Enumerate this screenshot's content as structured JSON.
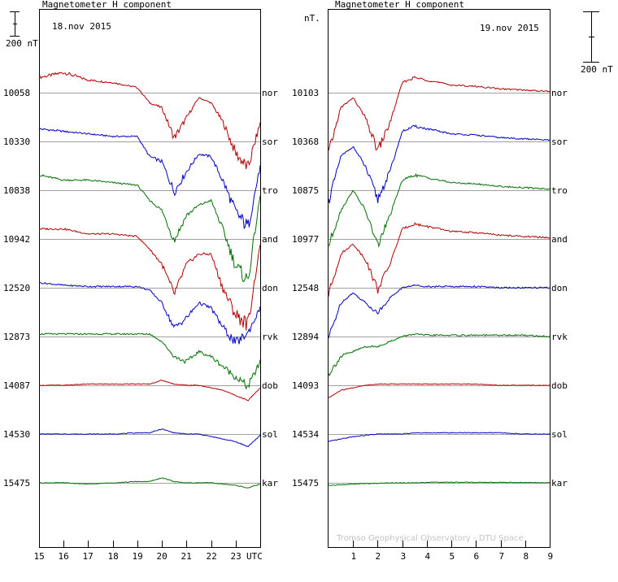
{
  "left_panel": {
    "title": "Magnetometer H component",
    "date": "18.nov 2015",
    "scale_label": "200 nT",
    "x_ticks": [
      "15",
      "16",
      "17",
      "18",
      "19",
      "20",
      "21",
      "22",
      "23"
    ],
    "x_unit": "UTC",
    "baselines": [
      "10058",
      "10330",
      "10838",
      "10942",
      "12520",
      "12873",
      "14087",
      "14530",
      "15475"
    ]
  },
  "right_panel": {
    "title": "Magnetometer H component",
    "date": "19.nov 2015",
    "unit_label": "nT.",
    "scale_label": "200 nT",
    "x_ticks": [
      "1",
      "2",
      "3",
      "4",
      "5",
      "6",
      "7",
      "8",
      "9"
    ],
    "baselines": [
      "10103",
      "10368",
      "10875",
      "10977",
      "12548",
      "12894",
      "14093",
      "14534",
      "15475"
    ],
    "credit": "Tromso Geophysical Observatory - DTU Space"
  },
  "stations": [
    "nor",
    "sor",
    "tro",
    "and",
    "don",
    "rvk",
    "dob",
    "sol",
    "kar"
  ],
  "colors": {
    "red": "#b00000",
    "blue": "#0000c0",
    "green": "#007000",
    "baseline": "#a0a0a0",
    "frame": "#000000"
  },
  "chart_data": [
    {
      "type": "line",
      "title": "Magnetometer H component",
      "subtitle": "18.nov 2015",
      "xlabel": "UTC",
      "x_range": [
        15,
        24
      ],
      "ylabel": "",
      "scale_bar_nT": 200,
      "series": [
        {
          "name": "nor",
          "baseline_nT": 10058,
          "color": "red",
          "x": [
            15,
            16,
            17,
            18,
            19,
            19.5,
            20,
            20.5,
            21,
            21.5,
            22,
            22.5,
            23,
            23.5,
            24
          ],
          "offset_nT": [
            60,
            80,
            50,
            40,
            20,
            -40,
            -60,
            -180,
            -100,
            -20,
            -40,
            -120,
            -240,
            -300,
            -120
          ]
        },
        {
          "name": "sor",
          "baseline_nT": 10330,
          "color": "blue",
          "x": [
            15,
            16,
            17,
            18,
            19,
            19.5,
            20,
            20.5,
            21,
            21.5,
            22,
            22.5,
            23,
            23.5,
            24
          ],
          "offset_nT": [
            50,
            40,
            30,
            20,
            20,
            -60,
            -80,
            -200,
            -120,
            -50,
            -60,
            -160,
            -280,
            -340,
            -100
          ]
        },
        {
          "name": "tro",
          "baseline_nT": 10838,
          "color": "green",
          "x": [
            15,
            16,
            17,
            18,
            19,
            19.5,
            20,
            20.5,
            21,
            21.5,
            22,
            22.5,
            23,
            23.5,
            24
          ],
          "offset_nT": [
            60,
            40,
            40,
            30,
            20,
            -40,
            -80,
            -200,
            -100,
            -60,
            -40,
            -160,
            -300,
            -360,
            -20
          ]
        },
        {
          "name": "and",
          "baseline_nT": 10942,
          "color": "red",
          "x": [
            15,
            16,
            17,
            18,
            19,
            19.5,
            20,
            20.5,
            21,
            21.5,
            22,
            22.5,
            23,
            23.5,
            24
          ],
          "offset_nT": [
            40,
            40,
            20,
            20,
            10,
            -40,
            -100,
            -220,
            -100,
            -60,
            -60,
            -200,
            -300,
            -340,
            -20
          ]
        },
        {
          "name": "don",
          "baseline_nT": 12520,
          "color": "blue",
          "x": [
            15,
            16,
            17,
            18,
            19,
            19.5,
            20,
            20.5,
            21,
            21.5,
            22,
            22.5,
            23,
            23.5,
            24
          ],
          "offset_nT": [
            20,
            10,
            5,
            5,
            5,
            -10,
            -60,
            -160,
            -120,
            -60,
            -80,
            -160,
            -220,
            -180,
            -80
          ]
        },
        {
          "name": "rvk",
          "baseline_nT": 12873,
          "color": "green",
          "x": [
            15,
            16,
            17,
            18,
            19,
            19.5,
            20,
            20.5,
            21,
            21.5,
            22,
            22.5,
            23,
            23.5,
            24
          ],
          "offset_nT": [
            10,
            10,
            10,
            10,
            10,
            10,
            -20,
            -80,
            -100,
            -60,
            -80,
            -120,
            -160,
            -200,
            -100
          ]
        },
        {
          "name": "dob",
          "baseline_nT": 14087,
          "color": "red",
          "x": [
            15,
            16,
            17,
            18,
            19,
            19.5,
            20,
            20.5,
            21,
            21.5,
            22,
            22.5,
            23,
            23.5,
            24
          ],
          "offset_nT": [
            0,
            0,
            5,
            5,
            5,
            5,
            20,
            5,
            0,
            0,
            -10,
            -20,
            -40,
            -60,
            -10
          ]
        },
        {
          "name": "sol",
          "baseline_nT": 14530,
          "color": "blue",
          "x": [
            15,
            16,
            17,
            18,
            19,
            19.5,
            20,
            20.5,
            21,
            21.5,
            22,
            22.5,
            23,
            23.5,
            24
          ],
          "offset_nT": [
            0,
            0,
            0,
            0,
            5,
            5,
            20,
            5,
            0,
            0,
            -10,
            -20,
            -30,
            -50,
            -5
          ]
        },
        {
          "name": "kar",
          "baseline_nT": 15475,
          "color": "green",
          "x": [
            15,
            16,
            17,
            18,
            19,
            19.5,
            20,
            20.5,
            21,
            21.5,
            22,
            22.5,
            23,
            23.5,
            24
          ],
          "offset_nT": [
            0,
            0,
            -5,
            0,
            5,
            5,
            20,
            5,
            0,
            0,
            0,
            -5,
            -10,
            -20,
            -5
          ]
        }
      ]
    },
    {
      "type": "line",
      "title": "Magnetometer H component",
      "subtitle": "19.nov 2015",
      "ylabel": "nT.",
      "x_range": [
        0,
        9
      ],
      "scale_bar_nT": 200,
      "series": [
        {
          "name": "nor",
          "baseline_nT": 10103,
          "color": "red",
          "x": [
            0,
            0.5,
            1,
            1.5,
            2,
            2.5,
            3,
            3.5,
            4,
            5,
            6,
            7,
            8,
            9
          ],
          "offset_nT": [
            -240,
            -60,
            -20,
            -100,
            -230,
            -120,
            40,
            60,
            50,
            30,
            25,
            15,
            10,
            5
          ]
        },
        {
          "name": "sor",
          "baseline_nT": 10368,
          "color": "blue",
          "x": [
            0,
            0.5,
            1,
            1.5,
            2,
            2.5,
            3,
            3.5,
            4,
            5,
            6,
            7,
            8,
            9
          ],
          "offset_nT": [
            -240,
            -60,
            -20,
            -100,
            -230,
            -120,
            40,
            60,
            50,
            30,
            25,
            15,
            10,
            5
          ]
        },
        {
          "name": "tro",
          "baseline_nT": 10875,
          "color": "green",
          "x": [
            0,
            0.5,
            1,
            1.5,
            2,
            2.5,
            3,
            3.5,
            4,
            5,
            6,
            7,
            8,
            9
          ],
          "offset_nT": [
            -220,
            -80,
            0,
            -80,
            -220,
            -100,
            40,
            60,
            50,
            30,
            25,
            15,
            10,
            5
          ]
        },
        {
          "name": "and",
          "baseline_nT": 10977,
          "color": "red",
          "x": [
            0,
            0.5,
            1,
            1.5,
            2,
            2.5,
            3,
            3.5,
            4,
            5,
            6,
            7,
            8,
            9
          ],
          "offset_nT": [
            -220,
            -60,
            -20,
            -80,
            -200,
            -100,
            40,
            60,
            50,
            30,
            25,
            15,
            10,
            5
          ]
        },
        {
          "name": "don",
          "baseline_nT": 12548,
          "color": "blue",
          "x": [
            0,
            0.5,
            1,
            1.5,
            2,
            2.5,
            3,
            3.5,
            4,
            5,
            6,
            7,
            8,
            9
          ],
          "offset_nT": [
            -200,
            -60,
            -20,
            -60,
            -100,
            -40,
            0,
            10,
            5,
            5,
            5,
            0,
            0,
            0
          ]
        },
        {
          "name": "rvk",
          "baseline_nT": 12894,
          "color": "green",
          "x": [
            0,
            0.5,
            1,
            1.5,
            2,
            2.5,
            3,
            3.5,
            4,
            5,
            6,
            7,
            8,
            9
          ],
          "offset_nT": [
            -150,
            -80,
            -60,
            -40,
            -40,
            -20,
            0,
            10,
            5,
            5,
            5,
            5,
            5,
            0
          ]
        },
        {
          "name": "dob",
          "baseline_nT": 14093,
          "color": "red",
          "x": [
            0,
            0.5,
            1,
            1.5,
            2,
            2.5,
            3,
            3.5,
            4,
            5,
            6,
            7,
            8,
            9
          ],
          "offset_nT": [
            -50,
            -20,
            -10,
            0,
            5,
            5,
            5,
            5,
            5,
            5,
            5,
            0,
            0,
            0
          ]
        },
        {
          "name": "sol",
          "baseline_nT": 14534,
          "color": "blue",
          "x": [
            0,
            0.5,
            1,
            1.5,
            2,
            2.5,
            3,
            3.5,
            4,
            5,
            6,
            7,
            8,
            9
          ],
          "offset_nT": [
            -30,
            -20,
            -10,
            -5,
            0,
            0,
            0,
            5,
            5,
            5,
            5,
            5,
            0,
            0
          ]
        },
        {
          "name": "kar",
          "baseline_nT": 15475,
          "color": "green",
          "x": [
            0,
            0.5,
            1,
            1.5,
            2,
            2.5,
            3,
            3.5,
            4,
            5,
            6,
            7,
            8,
            9
          ],
          "offset_nT": [
            -10,
            -8,
            -5,
            -3,
            -2,
            0,
            0,
            0,
            2,
            2,
            2,
            2,
            1,
            0
          ]
        }
      ]
    }
  ]
}
